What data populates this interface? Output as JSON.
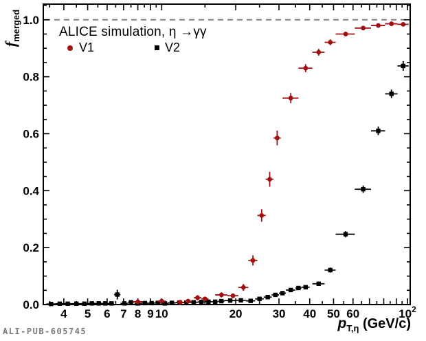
{
  "annotation": {
    "watermark": "ALI-PUB-605745"
  },
  "chart_data": {
    "type": "scatter",
    "title": "ALICE simulation, η →γγ",
    "xlabel": {
      "symbol": "p",
      "subscript": "T,η",
      "units": "(GeV/c)"
    },
    "ylabel": {
      "symbol": "f",
      "subscript": "merged"
    },
    "x_scale": "log",
    "xlim": [
      3.3,
      102.5
    ],
    "ylim": [
      0,
      1.055
    ],
    "grid": false,
    "reference_line": {
      "y": 1.0,
      "style": "dashed",
      "color": "#808080"
    },
    "x_labeled_ticks": [
      {
        "v": 4,
        "label": "4"
      },
      {
        "v": 5,
        "label": "5"
      },
      {
        "v": 6,
        "label": "6"
      },
      {
        "v": 7,
        "label": "7"
      },
      {
        "v": 8,
        "label": "8"
      },
      {
        "v": 9,
        "label": "9"
      },
      {
        "v": 10,
        "label": "10"
      },
      {
        "v": 20,
        "label": "20"
      },
      {
        "v": 30,
        "label": "30"
      },
      {
        "v": 40,
        "label": "40"
      },
      {
        "v": 50,
        "label": "50"
      },
      {
        "v": 60,
        "label": "60"
      },
      {
        "v": 100,
        "label": "10",
        "sup": "2"
      }
    ],
    "x_unlabeled_major_ticks": [
      70,
      80,
      90
    ],
    "x_minor_ticks": [
      3.5,
      4.5,
      5.5,
      6.5,
      7.5,
      8.5,
      9.5,
      15,
      25,
      35,
      45,
      55,
      65,
      75,
      85,
      95
    ],
    "y_major_ticks": [
      0.0,
      0.2,
      0.4,
      0.6,
      0.8,
      1.0
    ],
    "y_major_tick_labels": [
      "0.0",
      "0.2",
      "0.4",
      "0.6",
      "0.8",
      "1.0"
    ],
    "y_minor_step": 0.05,
    "legend": [
      {
        "name": "V1",
        "marker": "circle",
        "color": "#a01010"
      },
      {
        "name": "V2",
        "marker": "square",
        "color": "#000000"
      }
    ],
    "series": [
      {
        "name": "V2",
        "marker": "square",
        "color": "#000000",
        "points_format": [
          "pT_GeV",
          "f_merged",
          "x_halfwidth",
          "y_err"
        ],
        "points": [
          [
            3.55,
            0.002,
            0.15,
            0.002
          ],
          [
            3.85,
            0.003,
            0.15,
            0.002
          ],
          [
            4.15,
            0.003,
            0.15,
            0.002
          ],
          [
            4.5,
            0.003,
            0.2,
            0.002
          ],
          [
            4.85,
            0.003,
            0.15,
            0.002
          ],
          [
            5.2,
            0.004,
            0.2,
            0.002
          ],
          [
            5.55,
            0.004,
            0.15,
            0.002
          ],
          [
            5.9,
            0.004,
            0.2,
            0.003
          ],
          [
            6.25,
            0.004,
            0.15,
            0.003
          ],
          [
            6.6,
            0.035,
            0.2,
            0.017
          ],
          [
            7.05,
            0.004,
            0.25,
            0.003
          ],
          [
            7.5,
            0.008,
            0.2,
            0.004
          ],
          [
            8.0,
            0.004,
            0.25,
            0.003
          ],
          [
            8.55,
            0.005,
            0.3,
            0.003
          ],
          [
            9.1,
            0.005,
            0.25,
            0.003
          ],
          [
            9.65,
            0.006,
            0.3,
            0.003
          ],
          [
            10.3,
            0.004,
            0.35,
            0.003
          ],
          [
            11.0,
            0.006,
            0.4,
            0.003
          ],
          [
            11.8,
            0.007,
            0.4,
            0.003
          ],
          [
            12.6,
            0.007,
            0.4,
            0.003
          ],
          [
            13.5,
            0.008,
            0.5,
            0.004
          ],
          [
            14.5,
            0.009,
            0.5,
            0.004
          ],
          [
            15.5,
            0.01,
            0.5,
            0.004
          ],
          [
            16.5,
            0.01,
            0.5,
            0.004
          ],
          [
            17.5,
            0.012,
            0.5,
            0.004
          ],
          [
            19.0,
            0.014,
            1.0,
            0.004
          ],
          [
            21.0,
            0.015,
            1.0,
            0.004
          ],
          [
            23.0,
            0.013,
            1.0,
            0.004
          ],
          [
            25.0,
            0.02,
            1.0,
            0.005
          ],
          [
            27.0,
            0.026,
            1.0,
            0.005
          ],
          [
            29.0,
            0.034,
            1.0,
            0.006
          ],
          [
            31.0,
            0.04,
            1.0,
            0.006
          ],
          [
            33.5,
            0.051,
            1.5,
            0.006
          ],
          [
            36.0,
            0.058,
            1.0,
            0.006
          ],
          [
            38.5,
            0.061,
            1.5,
            0.006
          ],
          [
            43.5,
            0.073,
            2.5,
            0.008
          ],
          [
            48.5,
            0.121,
            2.5,
            0.009
          ],
          [
            56.0,
            0.247,
            5.0,
            0.011
          ],
          [
            66.0,
            0.405,
            5.0,
            0.013
          ],
          [
            76.0,
            0.61,
            5.0,
            0.015
          ],
          [
            86.0,
            0.74,
            5.0,
            0.015
          ],
          [
            96.0,
            0.838,
            5.0,
            0.017
          ]
        ]
      },
      {
        "name": "V1",
        "marker": "circle",
        "color": "#a01010",
        "points_format": [
          "pT_GeV",
          "f_merged",
          "x_halfwidth",
          "y_err"
        ],
        "points": [
          [
            8.0,
            0.01,
            0.4,
            0.006
          ],
          [
            10.0,
            0.012,
            0.4,
            0.006
          ],
          [
            11.9,
            0.008,
            0.4,
            0.005
          ],
          [
            12.8,
            0.012,
            0.4,
            0.006
          ],
          [
            14.0,
            0.024,
            0.5,
            0.009
          ],
          [
            15.0,
            0.02,
            0.5,
            0.007
          ],
          [
            17.5,
            0.034,
            1.0,
            0.009
          ],
          [
            19.5,
            0.031,
            1.0,
            0.008
          ],
          [
            21.5,
            0.06,
            1.0,
            0.012
          ],
          [
            23.5,
            0.155,
            1.0,
            0.018
          ],
          [
            25.5,
            0.313,
            1.0,
            0.022
          ],
          [
            27.5,
            0.44,
            1.0,
            0.026
          ],
          [
            29.5,
            0.585,
            1.0,
            0.026
          ],
          [
            33.5,
            0.725,
            2.5,
            0.018
          ],
          [
            38.5,
            0.83,
            2.5,
            0.014
          ],
          [
            43.5,
            0.886,
            2.5,
            0.012
          ],
          [
            48.5,
            0.921,
            2.5,
            0.01
          ],
          [
            56.0,
            0.95,
            5.0,
            0.008
          ],
          [
            66.0,
            0.971,
            5.0,
            0.006
          ],
          [
            76.0,
            0.98,
            5.0,
            0.005
          ],
          [
            86.0,
            0.986,
            5.0,
            0.004
          ],
          [
            96.0,
            0.984,
            5.0,
            0.005
          ]
        ]
      }
    ]
  }
}
